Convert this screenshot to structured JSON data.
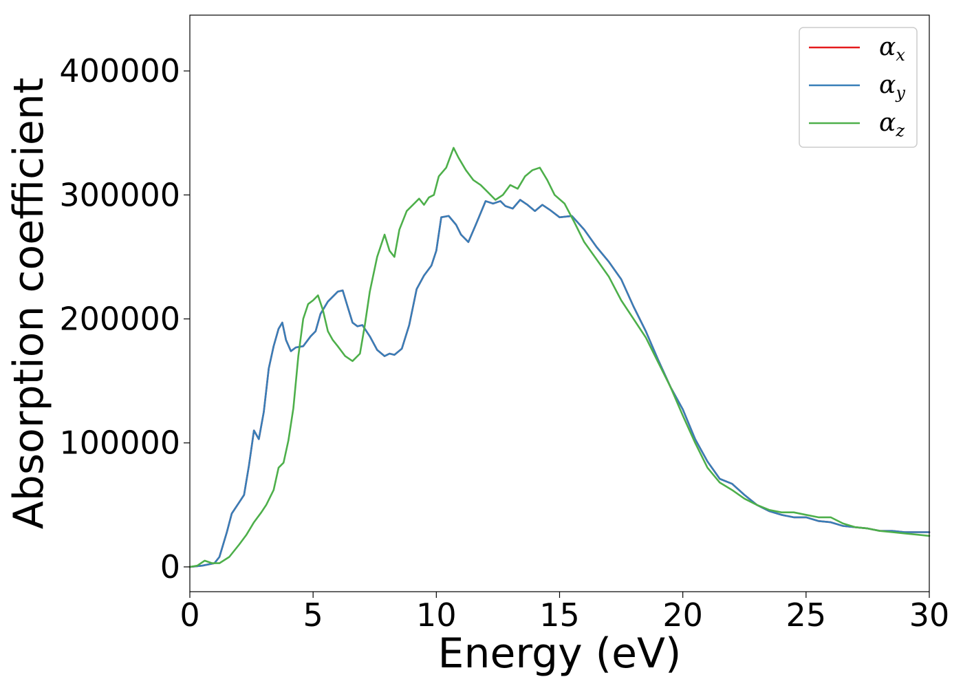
{
  "chart_data": {
    "type": "line",
    "title": "",
    "xlabel": "Energy (eV)",
    "ylabel": "Absorption coefficient",
    "xlim": [
      0,
      30
    ],
    "ylim": [
      -20000,
      445000
    ],
    "xticks": [
      0,
      5,
      10,
      15,
      20,
      25,
      30
    ],
    "xtick_labels": [
      "0",
      "5",
      "10",
      "15",
      "20",
      "25",
      "30"
    ],
    "yticks": [
      0,
      100000,
      200000,
      300000,
      400000
    ],
    "ytick_labels": [
      "0",
      "100000",
      "200000",
      "300000",
      "400000"
    ],
    "grid": false,
    "legend_position": "top-right",
    "series": [
      {
        "name": "α_x",
        "legend_symbol": "α",
        "legend_sub": "x",
        "color": "#e41a1c",
        "x": [
          0,
          0.5,
          1.0,
          1.2,
          1.5,
          1.7,
          2.0,
          2.2,
          2.4,
          2.6,
          2.8,
          3.0,
          3.2,
          3.4,
          3.6,
          3.75,
          3.9,
          4.1,
          4.3,
          4.6,
          4.9,
          5.1,
          5.3,
          5.6,
          6.0,
          6.2,
          6.4,
          6.6,
          6.8,
          7.0,
          7.3,
          7.6,
          7.9,
          8.1,
          8.3,
          8.6,
          8.9,
          9.2,
          9.5,
          9.8,
          10.0,
          10.2,
          10.5,
          10.8,
          11.0,
          11.3,
          11.6,
          12.0,
          12.3,
          12.6,
          12.8,
          13.1,
          13.4,
          13.7,
          14.0,
          14.3,
          14.6,
          15.0,
          15.5,
          16.0,
          16.5,
          17.0,
          17.5,
          18.0,
          18.5,
          19.0,
          19.5,
          20.0,
          20.5,
          21.0,
          21.5,
          22.0,
          22.5,
          23.0,
          23.5,
          24.0,
          24.5,
          25.0,
          25.5,
          26.0,
          26.5,
          27.0,
          27.5,
          28.0,
          28.5,
          29.0,
          29.5,
          30.0
        ],
        "values": [
          0,
          1000,
          3000,
          8000,
          28000,
          43000,
          52000,
          58000,
          82000,
          110000,
          103000,
          125000,
          160000,
          178000,
          192000,
          197000,
          183000,
          174000,
          177000,
          178000,
          186000,
          190000,
          204000,
          214000,
          222000,
          223000,
          210000,
          197000,
          194000,
          195000,
          186000,
          175000,
          170000,
          172000,
          171000,
          176000,
          195000,
          224000,
          235000,
          243000,
          255000,
          282000,
          283000,
          276000,
          268000,
          262000,
          276000,
          295000,
          293000,
          295000,
          291000,
          289000,
          296000,
          292000,
          287000,
          292000,
          288000,
          282000,
          283000,
          272000,
          258000,
          246000,
          232000,
          210000,
          190000,
          167000,
          145000,
          127000,
          103000,
          85000,
          71000,
          67000,
          58000,
          50000,
          45000,
          42000,
          40000,
          40000,
          37000,
          36000,
          33000,
          32000,
          31000,
          29000,
          29000,
          28000,
          28000,
          28000
        ]
      },
      {
        "name": "α_y",
        "legend_symbol": "α",
        "legend_sub": "y",
        "color": "#377eb8",
        "x": [
          0,
          0.5,
          1.0,
          1.2,
          1.5,
          1.7,
          2.0,
          2.2,
          2.4,
          2.6,
          2.8,
          3.0,
          3.2,
          3.4,
          3.6,
          3.75,
          3.9,
          4.1,
          4.3,
          4.6,
          4.9,
          5.1,
          5.3,
          5.6,
          6.0,
          6.2,
          6.4,
          6.6,
          6.8,
          7.0,
          7.3,
          7.6,
          7.9,
          8.1,
          8.3,
          8.6,
          8.9,
          9.2,
          9.5,
          9.8,
          10.0,
          10.2,
          10.5,
          10.8,
          11.0,
          11.3,
          11.6,
          12.0,
          12.3,
          12.6,
          12.8,
          13.1,
          13.4,
          13.7,
          14.0,
          14.3,
          14.6,
          15.0,
          15.5,
          16.0,
          16.5,
          17.0,
          17.5,
          18.0,
          18.5,
          19.0,
          19.5,
          20.0,
          20.5,
          21.0,
          21.5,
          22.0,
          22.5,
          23.0,
          23.5,
          24.0,
          24.5,
          25.0,
          25.5,
          26.0,
          26.5,
          27.0,
          27.5,
          28.0,
          28.5,
          29.0,
          29.5,
          30.0
        ],
        "values": [
          0,
          1000,
          3000,
          8000,
          28000,
          43000,
          52000,
          58000,
          82000,
          110000,
          103000,
          125000,
          160000,
          178000,
          192000,
          197000,
          183000,
          174000,
          177000,
          178000,
          186000,
          190000,
          204000,
          214000,
          222000,
          223000,
          210000,
          197000,
          194000,
          195000,
          186000,
          175000,
          170000,
          172000,
          171000,
          176000,
          195000,
          224000,
          235000,
          243000,
          255000,
          282000,
          283000,
          276000,
          268000,
          262000,
          276000,
          295000,
          293000,
          295000,
          291000,
          289000,
          296000,
          292000,
          287000,
          292000,
          288000,
          282000,
          283000,
          272000,
          258000,
          246000,
          232000,
          210000,
          190000,
          167000,
          145000,
          127000,
          103000,
          85000,
          71000,
          67000,
          58000,
          50000,
          45000,
          42000,
          40000,
          40000,
          37000,
          36000,
          33000,
          32000,
          31000,
          29000,
          29000,
          28000,
          28000,
          28000
        ]
      },
      {
        "name": "α_z",
        "legend_symbol": "α",
        "legend_sub": "z",
        "color": "#4daf4a",
        "x": [
          0,
          0.3,
          0.6,
          0.9,
          1.2,
          1.6,
          2.0,
          2.3,
          2.6,
          2.9,
          3.1,
          3.4,
          3.6,
          3.8,
          4.0,
          4.2,
          4.4,
          4.6,
          4.8,
          5.0,
          5.2,
          5.4,
          5.6,
          5.8,
          6.0,
          6.3,
          6.6,
          6.9,
          7.1,
          7.3,
          7.6,
          7.9,
          8.1,
          8.3,
          8.5,
          8.8,
          9.1,
          9.3,
          9.5,
          9.7,
          9.9,
          10.1,
          10.4,
          10.7,
          10.9,
          11.2,
          11.5,
          11.8,
          12.1,
          12.4,
          12.7,
          13.0,
          13.3,
          13.6,
          13.9,
          14.2,
          14.5,
          14.8,
          15.2,
          15.6,
          16.0,
          16.5,
          17.0,
          17.5,
          18.0,
          18.5,
          19.0,
          19.5,
          20.0,
          20.5,
          21.0,
          21.5,
          22.0,
          22.5,
          23.0,
          23.5,
          24.0,
          24.5,
          25.0,
          25.5,
          26.0,
          26.5,
          27.0,
          27.5,
          28.0,
          28.5,
          29.0,
          29.5,
          30.0
        ],
        "values": [
          0,
          1000,
          5000,
          3000,
          3000,
          8000,
          18000,
          26000,
          36000,
          44000,
          50000,
          62000,
          80000,
          84000,
          102000,
          128000,
          170000,
          200000,
          212000,
          215000,
          219000,
          207000,
          190000,
          183000,
          178000,
          170000,
          166000,
          172000,
          195000,
          222000,
          250000,
          268000,
          255000,
          250000,
          272000,
          287000,
          293000,
          297000,
          292000,
          298000,
          300000,
          315000,
          322000,
          338000,
          330000,
          320000,
          312000,
          308000,
          302000,
          296000,
          300000,
          308000,
          305000,
          315000,
          320000,
          322000,
          312000,
          300000,
          293000,
          278000,
          262000,
          248000,
          234000,
          215000,
          200000,
          185000,
          165000,
          145000,
          122000,
          100000,
          80000,
          68000,
          62000,
          55000,
          50000,
          46000,
          44000,
          44000,
          42000,
          40000,
          40000,
          35000,
          32000,
          31000,
          29000,
          28000,
          27000,
          26000,
          25000
        ]
      }
    ]
  }
}
